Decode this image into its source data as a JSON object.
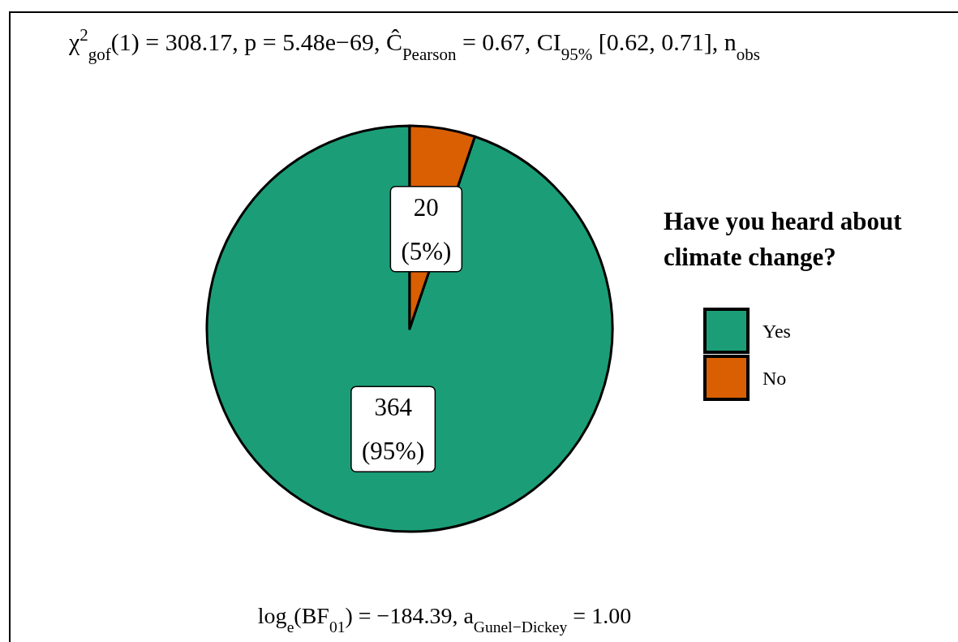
{
  "chart_data": {
    "type": "pie",
    "subtitle": "χ$^{2}$$_{gof}$(1) = 308.17, p = 5.48e−69, Ĉ$_{Pearson}$ = 0.67, CI$_{95%}$ [0.62, 0.71], n$_{obs}$",
    "categories": [
      "Yes",
      "No"
    ],
    "values": [
      364,
      20
    ],
    "colors": [
      "#1b9e77",
      "#d95f02"
    ],
    "value_labels": [
      "364\n(95%)",
      "20\n(5%)"
    ],
    "legend_title": "Have you heard about\nclimate change?",
    "legend": "right",
    "annotations": [
      "log$_{e}$(BF$_{01}$) = −184.39, a$_{Gunel−Dickey}$ = 1.00"
    ]
  }
}
